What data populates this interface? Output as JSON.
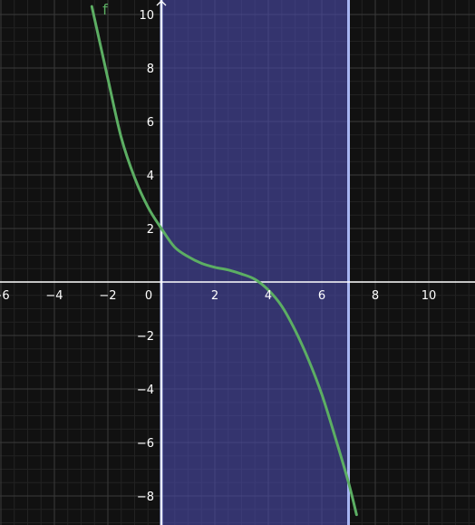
{
  "chart_data": {
    "type": "line",
    "title": "",
    "xlabel": "",
    "ylabel": "",
    "xlim": [
      -6,
      12.2
    ],
    "ylim": [
      -9.1,
      10.4
    ],
    "grid": true,
    "x_ticks": [
      -6,
      -4,
      -2,
      0,
      2,
      4,
      6,
      8,
      10
    ],
    "x_tick_labels": [
      "−6",
      "−4",
      "−2",
      "0",
      "2",
      "4",
      "6",
      "8",
      "10"
    ],
    "y_ticks": [
      10,
      8,
      6,
      4,
      2,
      -2,
      -4,
      -6,
      -8
    ],
    "y_tick_labels": [
      "10",
      "8",
      "6",
      "4",
      "2",
      "−2",
      "−4",
      "−6",
      "−8"
    ],
    "series": [
      {
        "name": "f",
        "color": "#5cae63",
        "x": [
          -2.6,
          -2.4,
          -2,
          -1.5,
          -1,
          -0.5,
          0,
          0.5,
          1,
          1.5,
          2,
          2.5,
          3,
          3.5,
          4,
          4.5,
          5,
          5.5,
          6,
          6.5,
          7,
          7.3
        ],
        "y": [
          10.3,
          9.4,
          7.6,
          5.4,
          3.9,
          2.8,
          2,
          1.3,
          0.95,
          0.7,
          0.55,
          0.45,
          0.3,
          0.1,
          -0.3,
          -0.9,
          -1.8,
          -2.9,
          -4.2,
          -5.8,
          -7.5,
          -8.7
        ]
      }
    ],
    "shaded_region": {
      "x_start": 0,
      "x_end": 7,
      "fill_color": "#4a4aa8",
      "edge_color": "#a7b5f2"
    },
    "colors": {
      "background": "#111111",
      "axis": "#ffffff",
      "grid_major": "#3a3a3a",
      "grid_minor": "#222222"
    }
  }
}
